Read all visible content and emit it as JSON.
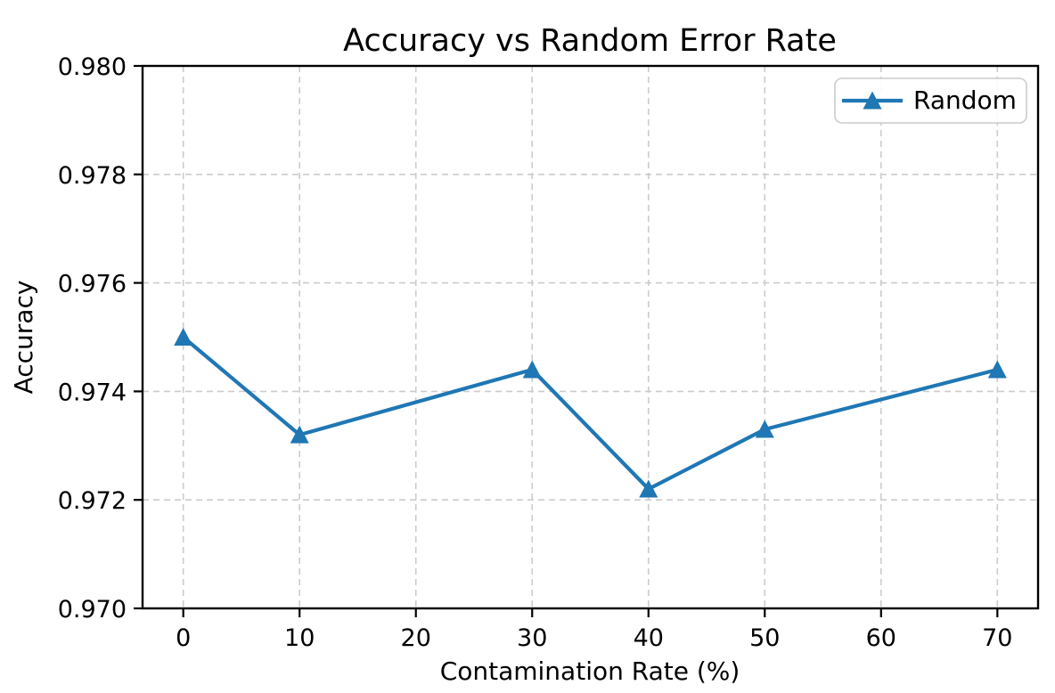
{
  "chart": {
    "title": "Accuracy vs Random Error Rate",
    "xlabel": "Contamination Rate (%)",
    "ylabel": "Accuracy",
    "legend": {
      "label": "Random",
      "marker": "triangle-up-icon"
    },
    "colors": {
      "series": "#1f77b4",
      "grid": "#cccccc",
      "axis": "#000000",
      "legend_border": "#cccccc",
      "background": "#ffffff"
    }
  },
  "chart_data": {
    "type": "line",
    "title": "Accuracy vs Random Error Rate",
    "xlabel": "Contamination Rate (%)",
    "ylabel": "Accuracy",
    "series": [
      {
        "name": "Random",
        "color": "#1f77b4",
        "marker": "triangle-up",
        "x": [
          0,
          10,
          30,
          40,
          50,
          70
        ],
        "y": [
          0.975,
          0.9732,
          0.9744,
          0.9722,
          0.9733,
          0.9744
        ]
      }
    ],
    "xlim": [
      -3.5,
      73.5
    ],
    "ylim": [
      0.97,
      0.98
    ],
    "xticks": [
      0,
      10,
      20,
      30,
      40,
      50,
      60,
      70
    ],
    "xtick_labels": [
      "0",
      "10",
      "20",
      "30",
      "40",
      "50",
      "60",
      "70"
    ],
    "yticks": [
      0.97,
      0.972,
      0.974,
      0.976,
      0.978,
      0.98
    ],
    "ytick_labels": [
      "0.970",
      "0.972",
      "0.974",
      "0.976",
      "0.978",
      "0.980"
    ],
    "grid": true,
    "grid_style": "dashed",
    "legend_position": "upper right"
  }
}
